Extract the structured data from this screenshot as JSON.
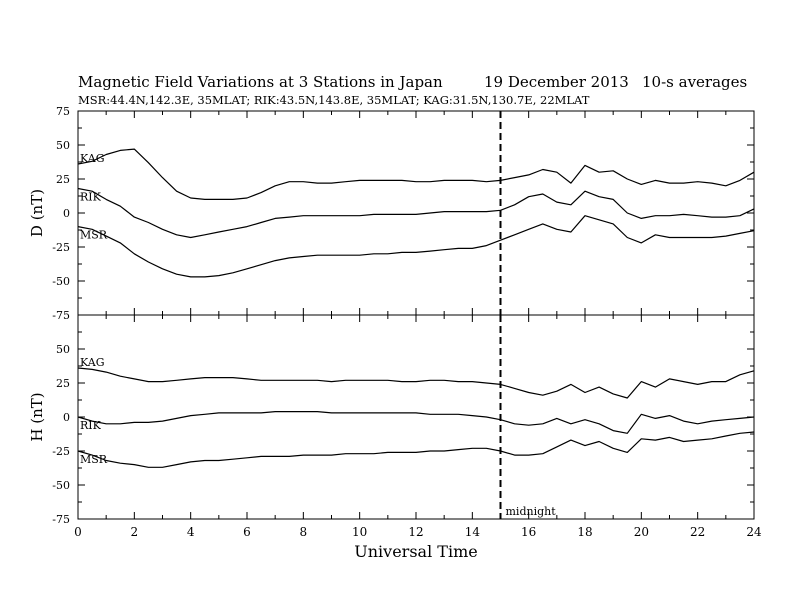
{
  "header": {
    "title": "Magnetic Field Variations at 3 Stations in Japan",
    "date": "19 December 2013",
    "averaging": "10-s averages",
    "stations_line": "MSR:44.4N,142.3E, 35MLAT;  RIK:43.5N,143.8E, 35MLAT;  KAG:31.5N,130.7E, 22MLAT"
  },
  "chart_data": [
    {
      "type": "line",
      "ylabel": "D (nT)",
      "xlim": [
        0,
        24
      ],
      "ylim": [
        -75,
        75
      ],
      "yticks": [
        -75,
        -50,
        -25,
        0,
        25,
        50,
        75
      ],
      "series": [
        {
          "name": "KAG",
          "x": [
            0,
            0.5,
            1,
            1.5,
            2,
            2.5,
            3,
            3.5,
            4,
            4.5,
            5,
            5.5,
            6,
            6.5,
            7,
            7.5,
            8,
            8.5,
            9,
            9.5,
            10,
            10.5,
            11,
            11.5,
            12,
            12.5,
            13,
            13.5,
            14,
            14.5,
            15,
            15.5,
            16,
            16.5,
            17,
            17.5,
            18,
            18.5,
            19,
            19.5,
            20,
            20.5,
            21,
            21.5,
            22,
            22.5,
            23,
            23.5,
            24
          ],
          "values": [
            36,
            38,
            43,
            46,
            47,
            37,
            26,
            16,
            11,
            10,
            10,
            10,
            11,
            15,
            20,
            23,
            23,
            22,
            22,
            23,
            24,
            24,
            24,
            24,
            23,
            23,
            24,
            24,
            24,
            23,
            24,
            26,
            28,
            32,
            30,
            22,
            35,
            30,
            31,
            25,
            21,
            24,
            22,
            22,
            23,
            22,
            20,
            24,
            30
          ]
        },
        {
          "name": "RIK",
          "x": [
            0,
            0.5,
            1,
            1.5,
            2,
            2.5,
            3,
            3.5,
            4,
            4.5,
            5,
            5.5,
            6,
            6.5,
            7,
            7.5,
            8,
            8.5,
            9,
            9.5,
            10,
            10.5,
            11,
            11.5,
            12,
            12.5,
            13,
            13.5,
            14,
            14.5,
            15,
            15.5,
            16,
            16.5,
            17,
            17.5,
            18,
            18.5,
            19,
            19.5,
            20,
            20.5,
            21,
            21.5,
            22,
            22.5,
            23,
            23.5,
            24
          ],
          "values": [
            18,
            16,
            10,
            5,
            -3,
            -7,
            -12,
            -16,
            -18,
            -16,
            -14,
            -12,
            -10,
            -7,
            -4,
            -3,
            -2,
            -2,
            -2,
            -2,
            -2,
            -1,
            -1,
            -1,
            -1,
            0,
            1,
            1,
            1,
            1,
            2,
            6,
            12,
            14,
            8,
            6,
            16,
            12,
            10,
            0,
            -4,
            -2,
            -2,
            -1,
            -2,
            -3,
            -3,
            -2,
            3
          ]
        },
        {
          "name": "MSR",
          "x": [
            0,
            0.5,
            1,
            1.5,
            2,
            2.5,
            3,
            3.5,
            4,
            4.5,
            5,
            5.5,
            6,
            6.5,
            7,
            7.5,
            8,
            8.5,
            9,
            9.5,
            10,
            10.5,
            11,
            11.5,
            12,
            12.5,
            13,
            13.5,
            14,
            14.5,
            15,
            15.5,
            16,
            16.5,
            17,
            17.5,
            18,
            18.5,
            19,
            19.5,
            20,
            20.5,
            21,
            21.5,
            22,
            22.5,
            23,
            23.5,
            24
          ],
          "values": [
            -10,
            -12,
            -17,
            -22,
            -30,
            -36,
            -41,
            -45,
            -47,
            -47,
            -46,
            -44,
            -41,
            -38,
            -35,
            -33,
            -32,
            -31,
            -31,
            -31,
            -31,
            -30,
            -30,
            -29,
            -29,
            -28,
            -27,
            -26,
            -26,
            -24,
            -20,
            -16,
            -12,
            -8,
            -12,
            -14,
            -2,
            -5,
            -8,
            -18,
            -22,
            -16,
            -18,
            -18,
            -18,
            -18,
            -17,
            -15,
            -13
          ]
        }
      ],
      "annotations": [
        {
          "x": 15,
          "label": "",
          "style": "dashed vertical line"
        }
      ]
    },
    {
      "type": "line",
      "xlabel": "Universal Time",
      "ylabel": "H (nT)",
      "xlim": [
        0,
        24
      ],
      "xticks": [
        0,
        2,
        4,
        6,
        8,
        10,
        12,
        14,
        16,
        18,
        20,
        22,
        24
      ],
      "ylim": [
        -75,
        75
      ],
      "yticks": [
        -75,
        -50,
        -25,
        0,
        25,
        50
      ],
      "series": [
        {
          "name": "KAG",
          "x": [
            0,
            0.5,
            1,
            1.5,
            2,
            2.5,
            3,
            3.5,
            4,
            4.5,
            5,
            5.5,
            6,
            6.5,
            7,
            7.5,
            8,
            8.5,
            9,
            9.5,
            10,
            10.5,
            11,
            11.5,
            12,
            12.5,
            13,
            13.5,
            14,
            14.5,
            15,
            15.5,
            16,
            16.5,
            17,
            17.5,
            18,
            18.5,
            19,
            19.5,
            20,
            20.5,
            21,
            21.5,
            22,
            22.5,
            23,
            23.5,
            24
          ],
          "values": [
            36,
            35,
            33,
            30,
            28,
            26,
            26,
            27,
            28,
            29,
            29,
            29,
            28,
            27,
            27,
            27,
            27,
            27,
            26,
            27,
            27,
            27,
            27,
            26,
            26,
            27,
            27,
            26,
            26,
            25,
            24,
            21,
            18,
            16,
            19,
            24,
            18,
            22,
            17,
            14,
            26,
            22,
            28,
            26,
            24,
            26,
            26,
            31,
            34
          ]
        },
        {
          "name": "RIK",
          "x": [
            0,
            0.5,
            1,
            1.5,
            2,
            2.5,
            3,
            3.5,
            4,
            4.5,
            5,
            5.5,
            6,
            6.5,
            7,
            7.5,
            8,
            8.5,
            9,
            9.5,
            10,
            10.5,
            11,
            11.5,
            12,
            12.5,
            13,
            13.5,
            14,
            14.5,
            15,
            15.5,
            16,
            16.5,
            17,
            17.5,
            18,
            18.5,
            19,
            19.5,
            20,
            20.5,
            21,
            21.5,
            22,
            22.5,
            23,
            23.5,
            24
          ],
          "values": [
            0,
            -3,
            -5,
            -5,
            -4,
            -4,
            -3,
            -1,
            1,
            2,
            3,
            3,
            3,
            3,
            4,
            4,
            4,
            4,
            3,
            3,
            3,
            3,
            3,
            3,
            3,
            2,
            2,
            2,
            1,
            0,
            -2,
            -5,
            -6,
            -5,
            -1,
            -5,
            -2,
            -5,
            -10,
            -12,
            2,
            -1,
            1,
            -3,
            -5,
            -3,
            -2,
            -1,
            0
          ]
        },
        {
          "name": "MSR",
          "x": [
            0,
            0.5,
            1,
            1.5,
            2,
            2.5,
            3,
            3.5,
            4,
            4.5,
            5,
            5.5,
            6,
            6.5,
            7,
            7.5,
            8,
            8.5,
            9,
            9.5,
            10,
            10.5,
            11,
            11.5,
            12,
            12.5,
            13,
            13.5,
            14,
            14.5,
            15,
            15.5,
            16,
            16.5,
            17,
            17.5,
            18,
            18.5,
            19,
            19.5,
            20,
            20.5,
            21,
            21.5,
            22,
            22.5,
            23,
            23.5,
            24
          ],
          "values": [
            -25,
            -28,
            -32,
            -34,
            -35,
            -37,
            -37,
            -35,
            -33,
            -32,
            -32,
            -31,
            -30,
            -29,
            -29,
            -29,
            -28,
            -28,
            -28,
            -27,
            -27,
            -27,
            -26,
            -26,
            -26,
            -25,
            -25,
            -24,
            -23,
            -23,
            -25,
            -28,
            -28,
            -27,
            -22,
            -17,
            -21,
            -18,
            -23,
            -26,
            -16,
            -17,
            -15,
            -18,
            -17,
            -16,
            -14,
            -12,
            -11
          ]
        }
      ],
      "annotations": [
        {
          "x": 15,
          "label": "midnight",
          "style": "dashed vertical line"
        }
      ]
    }
  ]
}
